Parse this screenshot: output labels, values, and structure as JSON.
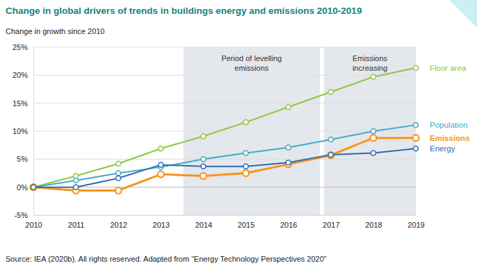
{
  "chart_data": {
    "type": "line",
    "title": "Change in global drivers of trends in buildings energy and emissions 2010-2019",
    "y_label": "Change in growth since 2010",
    "source": "Source: IEA (2020b). All rights reserved. Adapted from “Energy Technology Perspectives 2020”",
    "x": [
      2010,
      2011,
      2012,
      2013,
      2014,
      2015,
      2016,
      2017,
      2018,
      2019
    ],
    "xlim": [
      2010,
      2019
    ],
    "xticks": [
      2010,
      2011,
      2012,
      2013,
      2014,
      2015,
      2016,
      2017,
      2018,
      2019
    ],
    "ylim": [
      -5,
      25
    ],
    "yticks": [
      {
        "value": -5,
        "label": "-5%"
      },
      {
        "value": 0,
        "label": "0%"
      },
      {
        "value": 5,
        "label": "5%"
      },
      {
        "value": 10,
        "label": "10%"
      },
      {
        "value": 15,
        "label": "15%"
      },
      {
        "value": 20,
        "label": "20%"
      },
      {
        "value": 25,
        "label": "25%"
      }
    ],
    "grid": true,
    "marker": "circle",
    "annotations": [
      {
        "text": [
          "Period of levelling",
          "emissions"
        ],
        "x0": 2013.53,
        "x1": 2016.74
      },
      {
        "text": [
          "Emissions",
          "increasing"
        ],
        "x0": 2016.84,
        "x1": 2019
      }
    ],
    "series": [
      {
        "name": "Floor area",
        "color": "#8dc63f",
        "values": [
          0,
          2.0,
          4.2,
          6.9,
          9.1,
          11.6,
          14.3,
          17.0,
          19.7,
          21.3
        ]
      },
      {
        "name": "Population",
        "color": "#3fa9c9",
        "values": [
          0,
          1.2,
          2.5,
          3.6,
          5.0,
          6.1,
          7.1,
          8.5,
          10.0,
          11.1
        ]
      },
      {
        "name": "Emissions",
        "color": "#f7941d",
        "values": [
          0,
          -0.6,
          -0.6,
          2.3,
          2.0,
          2.5,
          4.1,
          5.7,
          8.8,
          8.8
        ]
      },
      {
        "name": "Energy",
        "color": "#2b6cb0",
        "values": [
          0,
          0.0,
          1.6,
          4.0,
          3.7,
          3.7,
          4.4,
          5.8,
          6.1,
          6.9
        ]
      }
    ]
  }
}
